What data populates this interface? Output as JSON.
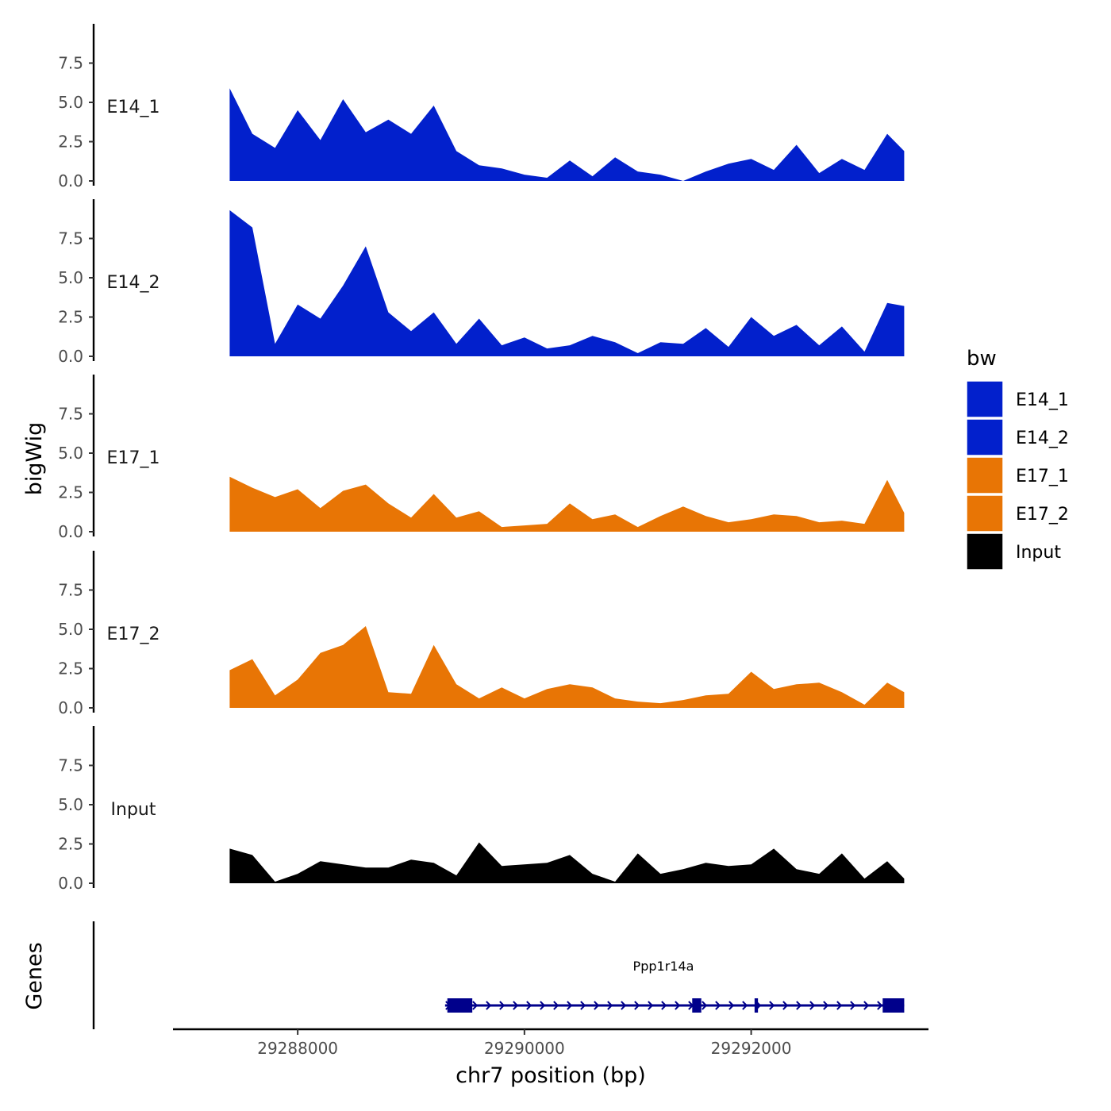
{
  "chart_data": {
    "type": "area",
    "ylabel": "bigWig",
    "xlabel": "chr7 position (bp)",
    "genes_label": "Genes",
    "xlim": [
      29286900,
      29293550
    ],
    "xticks": [
      29288000,
      29290000,
      29292000
    ],
    "xtick_labels": [
      "29288000",
      "29290000",
      "29292000"
    ],
    "ylim": [
      0,
      10
    ],
    "yticks": [
      0,
      2.5,
      5,
      7.5
    ],
    "ytick_labels": [
      "0.0",
      "2.5",
      "5.0",
      "7.5"
    ],
    "legend": {
      "title": "bw",
      "position": "right",
      "entries": [
        {
          "label": "E14_1",
          "color": "#0220cc"
        },
        {
          "label": "E14_2",
          "color": "#0220cc"
        },
        {
          "label": "E17_1",
          "color": "#e87505"
        },
        {
          "label": "E17_2",
          "color": "#e87505"
        },
        {
          "label": "Input",
          "color": "#000000"
        }
      ]
    },
    "x": [
      29287400,
      29287600,
      29287800,
      29288000,
      29288200,
      29288400,
      29288600,
      29288800,
      29289000,
      29289200,
      29289400,
      29289600,
      29289800,
      29290000,
      29290200,
      29290400,
      29290600,
      29290800,
      29291000,
      29291200,
      29291400,
      29291600,
      29291800,
      29292000,
      29292200,
      29292400,
      29292600,
      29292800,
      29293000,
      29293200,
      29293350
    ],
    "series": [
      {
        "name": "E14_1",
        "color": "#0220cc",
        "values": [
          5.9,
          3.0,
          2.1,
          4.5,
          2.6,
          5.2,
          3.1,
          3.9,
          3.0,
          4.8,
          1.9,
          1.0,
          0.8,
          0.4,
          0.2,
          1.3,
          0.3,
          1.5,
          0.6,
          0.4,
          0.0,
          0.6,
          1.1,
          1.4,
          0.7,
          2.3,
          0.5,
          1.4,
          0.7,
          3.0,
          1.9
        ]
      },
      {
        "name": "E14_2",
        "color": "#0220cc",
        "values": [
          9.3,
          8.2,
          0.8,
          3.3,
          2.4,
          4.5,
          7.0,
          2.8,
          1.6,
          2.8,
          0.8,
          2.4,
          0.7,
          1.2,
          0.5,
          0.7,
          1.3,
          0.9,
          0.2,
          0.9,
          0.8,
          1.8,
          0.6,
          2.5,
          1.3,
          2.0,
          0.7,
          1.9,
          0.3,
          3.4,
          3.2
        ]
      },
      {
        "name": "E17_1",
        "color": "#e87505",
        "values": [
          3.5,
          2.8,
          2.2,
          2.7,
          1.5,
          2.6,
          3.0,
          1.8,
          0.9,
          2.4,
          0.9,
          1.3,
          0.3,
          0.4,
          0.5,
          1.8,
          0.8,
          1.1,
          0.3,
          1.0,
          1.6,
          1.0,
          0.6,
          0.8,
          1.1,
          1.0,
          0.6,
          0.7,
          0.5,
          3.3,
          1.2
        ]
      },
      {
        "name": "E17_2",
        "color": "#e87505",
        "values": [
          2.4,
          3.1,
          0.8,
          1.8,
          3.5,
          4.0,
          5.2,
          1.0,
          0.9,
          4.0,
          1.5,
          0.6,
          1.3,
          0.6,
          1.2,
          1.5,
          1.3,
          0.6,
          0.4,
          0.3,
          0.5,
          0.8,
          0.9,
          2.3,
          1.2,
          1.5,
          1.6,
          1.0,
          0.2,
          1.6,
          1.0
        ]
      },
      {
        "name": "Input",
        "color": "#000000",
        "values": [
          2.2,
          1.8,
          0.1,
          0.6,
          1.4,
          1.2,
          1.0,
          1.0,
          1.5,
          1.3,
          0.5,
          2.6,
          1.1,
          1.2,
          1.3,
          1.8,
          0.6,
          0.1,
          1.9,
          0.6,
          0.9,
          1.3,
          1.1,
          1.2,
          2.2,
          0.9,
          0.6,
          1.9,
          0.3,
          1.4,
          0.3
        ]
      }
    ],
    "gene": {
      "name": "Ppp1r14a",
      "color": "#00008b",
      "strand": "+",
      "start": 29289300,
      "end": 29293350,
      "exons": [
        [
          29289320,
          29289540
        ],
        [
          29291480,
          29291560
        ],
        [
          29292030,
          29292060
        ],
        [
          29293160,
          29293350
        ]
      ]
    }
  }
}
